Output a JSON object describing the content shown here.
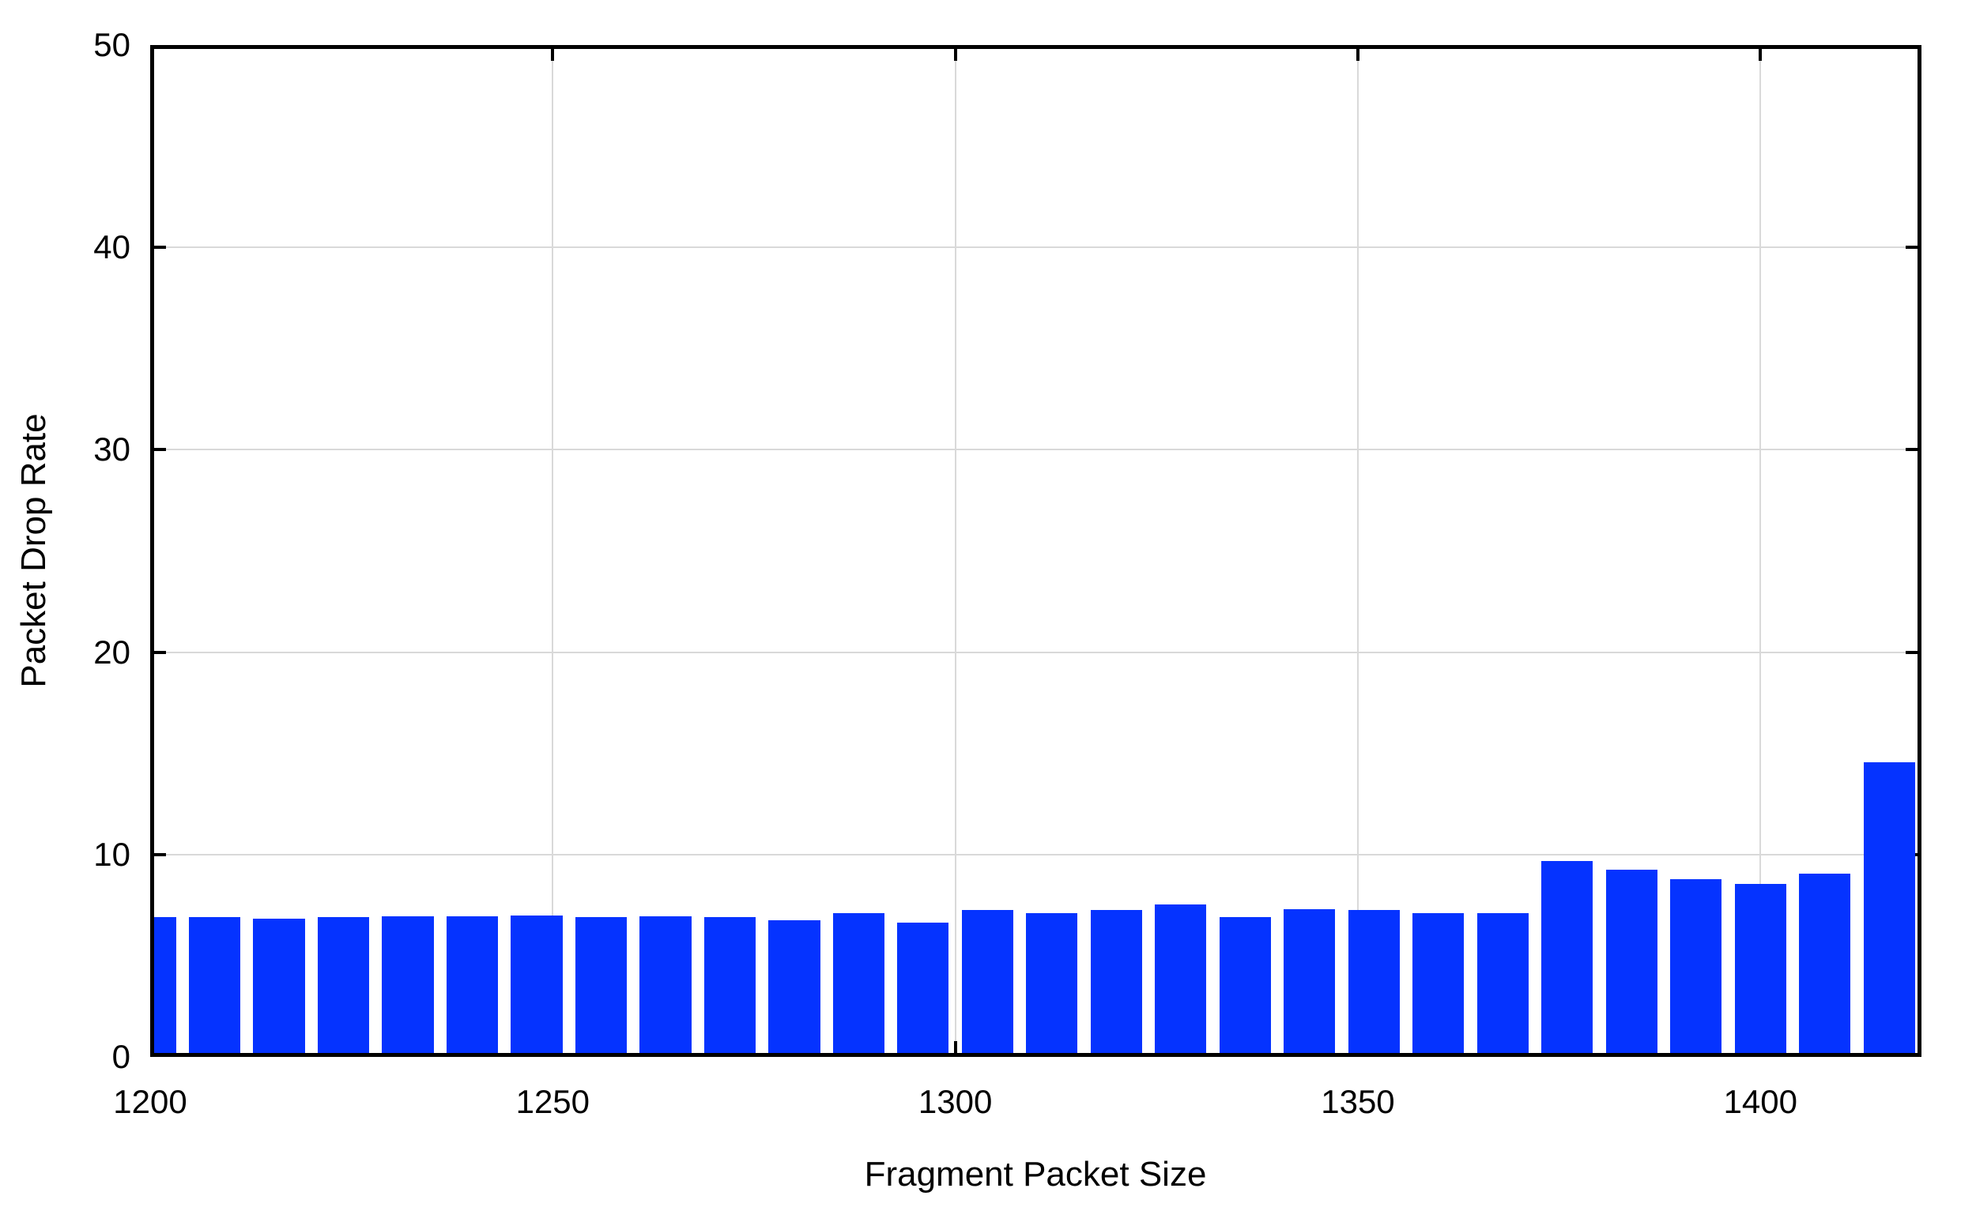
{
  "chart_data": {
    "type": "bar",
    "title": "",
    "xlabel": "Fragment Packet Size",
    "ylabel": "Packet Drop Rate",
    "xlim": [
      1200,
      1420
    ],
    "ylim": [
      0,
      50
    ],
    "xticks": [
      1200,
      1250,
      1300,
      1350,
      1400
    ],
    "yticks": [
      0,
      10,
      20,
      30,
      40,
      50
    ],
    "grid": true,
    "bar_width_units": 6.4,
    "bar_color": "#0533ff",
    "grid_color": "#d9d9d9",
    "axis_color": "#000000",
    "background": "#ffffff",
    "x": [
      1200,
      1208,
      1216,
      1224,
      1232,
      1240,
      1248,
      1256,
      1264,
      1272,
      1280,
      1288,
      1296,
      1304,
      1312,
      1320,
      1328,
      1336,
      1344,
      1352,
      1360,
      1368,
      1376,
      1384,
      1392,
      1400,
      1408,
      1416
    ],
    "values": [
      6.9,
      6.9,
      6.85,
      6.9,
      6.95,
      6.95,
      7.0,
      6.9,
      6.95,
      6.9,
      6.75,
      7.1,
      6.65,
      7.25,
      7.1,
      7.25,
      7.55,
      6.9,
      7.3,
      7.25,
      7.1,
      7.1,
      9.7,
      9.25,
      8.8,
      8.55,
      9.05,
      14.55
    ]
  }
}
